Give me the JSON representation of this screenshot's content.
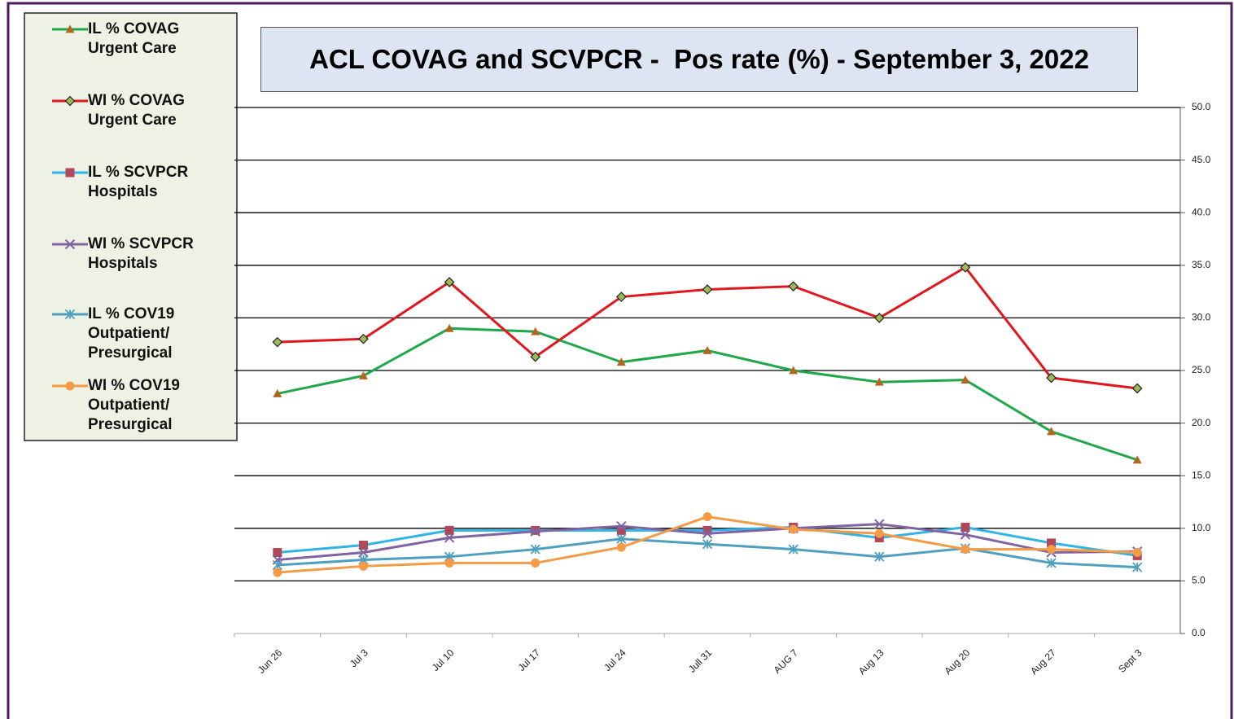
{
  "chart_data": {
    "type": "line",
    "title": "ACL COVAG and SCVPCR -  Pos rate (%) - September 3, 2022",
    "categories": [
      "Jun 26",
      "Jul 3",
      "Jul 10",
      "Jul 17",
      "Jul 24",
      "Jull 31",
      "AUG 7",
      "Aug 13",
      "Aug 20",
      "Aug 27",
      "Sept 3"
    ],
    "series": [
      {
        "name": "IL % COVAG\nUrgent Care",
        "color": "#1fa84a",
        "marker": "triangle",
        "marker_color": "#b5651d",
        "values": [
          22.8,
          24.5,
          29.0,
          28.7,
          25.8,
          26.9,
          25.0,
          23.9,
          24.1,
          19.2,
          16.5
        ]
      },
      {
        "name": "WI % COVAG\nUrgent Care",
        "color": "#e3161e",
        "marker": "diamond",
        "marker_color": "#9bbb59",
        "values": [
          27.7,
          28.0,
          33.4,
          26.3,
          32.0,
          32.7,
          33.0,
          30.0,
          34.8,
          24.3,
          23.3
        ]
      },
      {
        "name": "IL % SCVPCR\n Hospitals",
        "color": "#2fb4e6",
        "marker": "square",
        "marker_color": "#b0485a",
        "values": [
          7.7,
          8.4,
          9.8,
          9.8,
          9.8,
          9.8,
          10.1,
          9.1,
          10.1,
          8.6,
          7.4
        ]
      },
      {
        "name": "WI % SCVPCR\nHospitals",
        "color": "#8064a2",
        "marker": "x",
        "marker_color": "#8064a2",
        "values": [
          7.0,
          7.7,
          9.1,
          9.7,
          10.2,
          9.5,
          10.0,
          10.4,
          9.4,
          7.7,
          7.8
        ]
      },
      {
        "name": "IL % COV19\nOutpatient/\nPresurgical",
        "color": "#4f9fbf",
        "marker": "asterisk",
        "marker_color": "#4f9fbf",
        "values": [
          6.5,
          7.0,
          7.3,
          8.0,
          9.0,
          8.5,
          8.0,
          7.3,
          8.1,
          6.7,
          6.3
        ]
      },
      {
        "name": "WI % COV19\nOutpatient/\nPresurgical",
        "color": "#f59a45",
        "marker": "circle",
        "marker_color": "#f59a45",
        "values": [
          5.8,
          6.4,
          6.7,
          6.7,
          8.2,
          11.1,
          9.9,
          9.5,
          8.0,
          8.0,
          7.7
        ]
      }
    ],
    "ylim": [
      0,
      50
    ],
    "yticks": [
      {
        "value": 0,
        "label": "0.0"
      },
      {
        "value": 5,
        "label": "5.0"
      },
      {
        "value": 10,
        "label": "10.0"
      },
      {
        "value": 15,
        "label": "15.0"
      },
      {
        "value": 20,
        "label": "20.0"
      },
      {
        "value": 25,
        "label": "25.0"
      },
      {
        "value": 30,
        "label": "30.0"
      },
      {
        "value": 35,
        "label": "35.0"
      },
      {
        "value": 40,
        "label": "40.0"
      },
      {
        "value": 45,
        "label": "45.0"
      },
      {
        "value": 50,
        "label": "50.0"
      }
    ],
    "grid": true,
    "legend": "upper left"
  }
}
